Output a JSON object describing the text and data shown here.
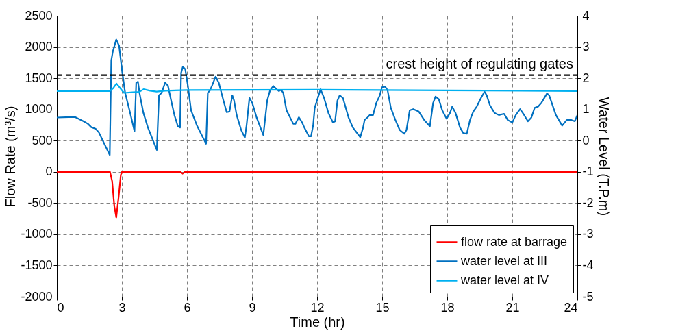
{
  "chart_data": {
    "type": "line",
    "xlabel": "Time (hr)",
    "ylabel": "Flow Rate (m³/s)",
    "y2label": "Water Level (T.P.m)",
    "xlim": [
      0,
      24
    ],
    "xticks": [
      0,
      3,
      6,
      9,
      12,
      15,
      18,
      21,
      24
    ],
    "ylim": [
      -2000,
      2500
    ],
    "yticks": [
      -2000,
      -1500,
      -1000,
      -500,
      0,
      500,
      1000,
      1500,
      2000,
      2500
    ],
    "y2lim": [
      -5,
      4
    ],
    "y2ticks": [
      -5,
      -4,
      -3,
      -2,
      -1,
      0,
      1,
      2,
      3,
      4
    ],
    "grid": true,
    "legend": "bottom right",
    "line_style": "solid",
    "marker": "none",
    "ref_lines": [
      {
        "axis": "y2",
        "value": 2.1,
        "label": "crest height of regulating gates",
        "color": "#000000",
        "line_style": "dashed"
      }
    ],
    "series": [
      {
        "name": "flow rate at barrage",
        "color": "#ff0000",
        "x": [
          0,
          2.45,
          2.55,
          2.65,
          2.74,
          2.85,
          2.95,
          3.0,
          5.7,
          5.8,
          5.9,
          24
        ],
        "values": [
          0,
          0,
          -150,
          -550,
          -730,
          -400,
          -50,
          0,
          0,
          -30,
          0,
          0
        ]
      },
      {
        "name": "water level at III",
        "color": "#0070c0",
        "axis": "y2",
        "x": [
          0,
          0.82,
          1.23,
          1.43,
          1.59,
          1.79,
          1.94,
          2.44,
          2.51,
          2.58,
          2.74,
          2.87,
          3.02,
          3.15,
          3.38,
          3.58,
          3.66,
          3.74,
          3.81,
          3.99,
          4.2,
          4.61,
          4.71,
          4.83,
          4.99,
          5.12,
          5.27,
          5.42,
          5.58,
          5.68,
          5.73,
          5.81,
          5.92,
          6.04,
          6.19,
          6.45,
          6.65,
          6.88,
          6.96,
          7.06,
          7.16,
          7.32,
          7.47,
          7.68,
          7.83,
          7.96,
          8.09,
          8.17,
          8.29,
          8.5,
          8.67,
          8.75,
          8.88,
          9.01,
          9.21,
          9.52,
          9.7,
          9.83,
          9.98,
          10.13,
          10.24,
          10.34,
          10.44,
          10.59,
          10.9,
          11.0,
          11.16,
          11.31,
          11.41,
          11.62,
          11.72,
          11.82,
          11.89,
          12.16,
          12.32,
          12.52,
          12.73,
          12.83,
          12.94,
          13.04,
          13.19,
          13.45,
          13.65,
          13.99,
          14.12,
          14.19,
          14.32,
          14.43,
          14.58,
          14.73,
          14.89,
          14.99,
          15.14,
          15.25,
          15.4,
          15.61,
          15.81,
          16.02,
          16.12,
          16.27,
          16.43,
          16.69,
          16.94,
          17.2,
          17.35,
          17.46,
          17.61,
          17.77,
          17.97,
          18.13,
          18.23,
          18.38,
          18.59,
          18.74,
          18.9,
          19.05,
          19.2,
          19.36,
          19.56,
          19.72,
          19.82,
          19.97,
          20.18,
          20.38,
          20.62,
          20.79,
          21.0,
          21.16,
          21.36,
          21.51,
          21.72,
          21.88,
          22.03,
          22.19,
          22.34,
          22.6,
          22.7,
          23.01,
          23.3,
          23.51,
          23.73,
          23.88,
          24
        ],
        "values": [
          0.74,
          0.76,
          0.62,
          0.54,
          0.43,
          0.38,
          0.26,
          -0.46,
          2.57,
          2.85,
          3.24,
          3.04,
          2.17,
          1.53,
          0.89,
          0.3,
          1.85,
          1.89,
          1.53,
          0.89,
          0.42,
          -0.3,
          1.45,
          1.53,
          1.85,
          1.77,
          1.29,
          0.82,
          0.46,
          0.42,
          2.17,
          2.37,
          2.29,
          1.77,
          0.97,
          0.5,
          0.22,
          -0.1,
          1.53,
          1.61,
          1.77,
          2.05,
          1.85,
          1.29,
          0.91,
          0.93,
          1.45,
          1.29,
          0.82,
          0.34,
          0.1,
          0.5,
          1.37,
          1.21,
          0.74,
          0.18,
          1.29,
          1.61,
          1.75,
          1.65,
          1.59,
          1.63,
          1.53,
          0.97,
          0.54,
          0.54,
          0.75,
          0.58,
          0.42,
          0.14,
          0.14,
          0.5,
          1.05,
          1.65,
          1.37,
          0.89,
          0.58,
          0.62,
          1.29,
          1.45,
          1.37,
          0.74,
          0.42,
          0.11,
          0.42,
          0.66,
          0.74,
          0.82,
          0.82,
          1.21,
          1.45,
          1.71,
          1.73,
          1.61,
          1.05,
          0.66,
          0.34,
          0.22,
          0.34,
          0.97,
          1.01,
          0.93,
          0.66,
          0.46,
          1.21,
          1.41,
          1.33,
          0.97,
          0.7,
          0.89,
          1.09,
          0.89,
          0.42,
          0.24,
          0.22,
          0.66,
          0.93,
          1.09,
          1.37,
          1.57,
          1.45,
          1.13,
          0.89,
          0.82,
          0.86,
          0.66,
          0.58,
          0.82,
          1.01,
          0.86,
          0.62,
          0.74,
          1.05,
          1.09,
          1.21,
          1.51,
          1.45,
          0.82,
          0.48,
          0.66,
          0.66,
          0.62,
          0.82
        ]
      },
      {
        "name": "water level at IV",
        "color": "#00b0f0",
        "axis": "y2",
        "x": [
          0,
          2.44,
          2.6,
          2.75,
          2.9,
          3.1,
          3.5,
          3.8,
          4.0,
          4.3,
          4.6,
          5.0,
          6,
          12,
          18,
          24
        ],
        "values": [
          1.59,
          1.59,
          1.68,
          1.83,
          1.7,
          1.53,
          1.55,
          1.56,
          1.65,
          1.6,
          1.57,
          1.6,
          1.62,
          1.63,
          1.61,
          1.59
        ]
      }
    ]
  }
}
